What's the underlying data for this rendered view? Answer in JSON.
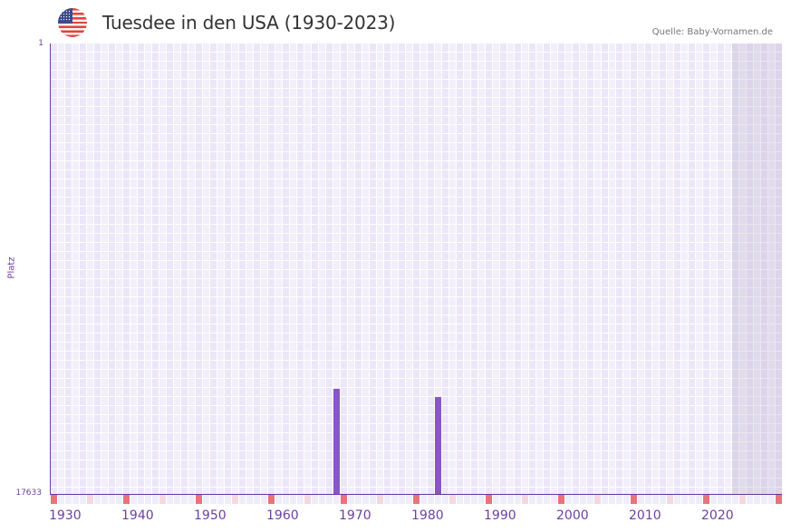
{
  "header": {
    "flag_icon": "us-flag-icon",
    "title": "Tuesdee in den USA (1930-2023)",
    "source": "Quelle: Baby-Vornamen.de"
  },
  "axes": {
    "y_label": "Platz",
    "y_top_tick": "1",
    "y_bottom_tick": "17633",
    "x_ticks": [
      "1930",
      "1940",
      "1950",
      "1960",
      "1970",
      "1980",
      "1990",
      "2000",
      "2010",
      "2020"
    ]
  },
  "colors": {
    "bar": "#8a55c8",
    "decade_marker": "#e8737a",
    "half_decade_marker": "#f4d8e0",
    "axis": "#6a35a0"
  },
  "chart_data": {
    "type": "bar",
    "title": "Tuesdee in den USA (1930-2023)",
    "xlabel": "",
    "ylabel": "Platz",
    "y_inverted": true,
    "ylim": [
      17633,
      1
    ],
    "xlim": [
      1930,
      2030
    ],
    "grid": true,
    "categories": [
      "1969",
      "1983"
    ],
    "values": [
      13520,
      13840
    ],
    "series": [
      {
        "name": "Tuesdee",
        "x": [
          1969,
          1983
        ],
        "values": [
          13520,
          13840
        ]
      }
    ],
    "annotations": [
      "Quelle: Baby-Vornamen.de"
    ],
    "shaded_future_region_from": 2024
  }
}
